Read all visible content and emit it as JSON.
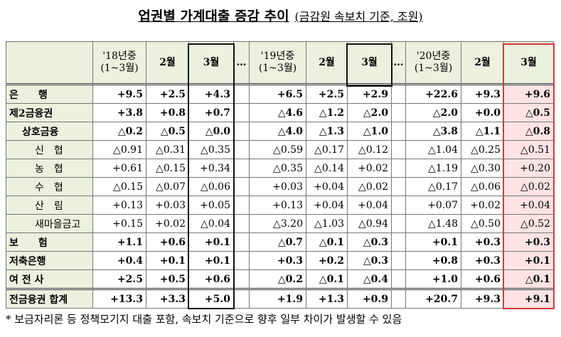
{
  "header": {
    "title": "업권별 가계대출 증감 추이",
    "subtitle": "(금감원 속보치 기준, 조원)"
  },
  "table": {
    "columns": [
      "'18년중\n(1~3월)",
      "2월",
      "3월",
      "…",
      "'19년중\n(1~3월)",
      "2월",
      "3월",
      "…",
      "'20년중\n(1~3월)",
      "2월",
      "3월"
    ],
    "rows": [
      {
        "label": "은　　행",
        "cells": [
          "+9.5",
          "+2.5",
          "+4.3",
          "+6.5",
          "+2.5",
          "+2.9",
          "+22.6",
          "+9.3",
          "+9.6"
        ]
      },
      {
        "label": "제2금융권",
        "cells": [
          "+3.8",
          "+0.8",
          "+0.7",
          "△4.6",
          "△1.2",
          "△2.0",
          "△2.0",
          "+0.0",
          "△0.5"
        ]
      },
      {
        "label": "상호금융",
        "cells": [
          "△0.2",
          "△0.5",
          "△0.0",
          "△4.0",
          "△1.3",
          "△1.0",
          "△3.8",
          "△1.1",
          "△0.8"
        ]
      },
      {
        "label": "신　협",
        "cells": [
          "△0.91",
          "△0.31",
          "△0.35",
          "△0.59",
          "△0.17",
          "△0.12",
          "△1.04",
          "△0.25",
          "△0.51"
        ]
      },
      {
        "label": "농　협",
        "cells": [
          "+0.61",
          "△0.15",
          "+0.34",
          "△0.35",
          "△0.14",
          "+0.02",
          "△1.19",
          "△0.30",
          "+0.20"
        ]
      },
      {
        "label": "수　협",
        "cells": [
          "△0.15",
          "△0.07",
          "△0.06",
          "+0.03",
          "+0.04",
          "△0.02",
          "△0.17",
          "△0.06",
          "△0.02"
        ]
      },
      {
        "label": "산　림",
        "cells": [
          "+0.13",
          "+0.03",
          "+0.05",
          "+0.13",
          "+0.04",
          "+0.04",
          "+0.07",
          "+0.02",
          "+0.04"
        ]
      },
      {
        "label": "새마을금고",
        "cells": [
          "+0.15",
          "+0.02",
          "△0.04",
          "△3.20",
          "△1.03",
          "△0.94",
          "△1.48",
          "△0.50",
          "△0.52"
        ]
      },
      {
        "label": "보　　험",
        "cells": [
          "+1.1",
          "+0.6",
          "+0.1",
          "△0.7",
          "△0.1",
          "△0.3",
          "+0.1",
          "+0.3",
          "+0.3"
        ]
      },
      {
        "label": "저축은행",
        "cells": [
          "+0.4",
          "+0.1",
          "+0.1",
          "+0.3",
          "+0.2",
          "△0.3",
          "+0.8",
          "+0.3",
          "+0.1"
        ]
      },
      {
        "label": "여 전 사",
        "cells": [
          "+2.5",
          "+0.5",
          "+0.6",
          "△0.2",
          "△0.1",
          "△0.4",
          "+1.0",
          "+0.6",
          "△0.1"
        ]
      },
      {
        "label": "전금융권 합계",
        "cells": [
          "+13.3",
          "+3.3",
          "+5.0",
          "+1.9",
          "+1.3",
          "+0.9",
          "+20.7",
          "+9.3",
          "+9.1"
        ]
      }
    ]
  },
  "footnote": "* 보금자리론 등 정책모기지 대출 포함, 속보치 기준으로 향후 일부 차이가 발생할 수 있음"
}
